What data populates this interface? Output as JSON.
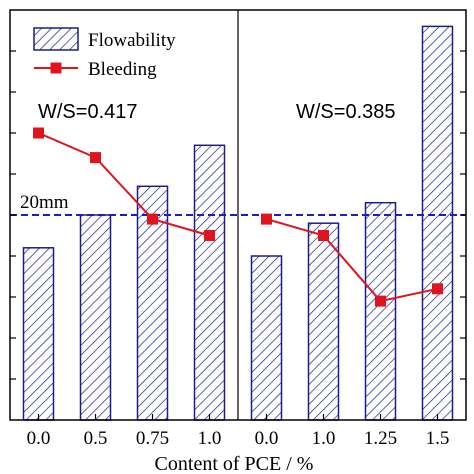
{
  "chart_data": {
    "type": "bar",
    "xlabel": "Content of PCE / %",
    "ylabel": "",
    "ylim": [
      0,
      100
    ],
    "categories": [
      "0.0",
      "0.5",
      "0.75",
      "1.0",
      "0.0",
      "1.0",
      "1.25",
      "1.5"
    ],
    "panels": [
      {
        "label": "W/S=0.417",
        "indices": [
          0,
          1,
          2,
          3
        ]
      },
      {
        "label": "W/S=0.385",
        "indices": [
          4,
          5,
          6,
          7
        ]
      }
    ],
    "series": [
      {
        "name": "Flowability",
        "kind": "bar",
        "values": [
          42,
          50,
          57,
          67,
          40,
          48,
          53,
          96
        ]
      },
      {
        "name": "Bleeding",
        "kind": "line",
        "values": [
          70,
          64,
          49,
          45,
          49,
          45,
          29,
          32
        ]
      }
    ],
    "reference_line": {
      "label": "20mm",
      "value": 50
    },
    "legend": {
      "position": "top-left"
    },
    "colors": {
      "bar_edge": "#1c1c8c",
      "line": "#e0141e",
      "reference": "#1c1ccc",
      "axis": "#000000"
    }
  }
}
